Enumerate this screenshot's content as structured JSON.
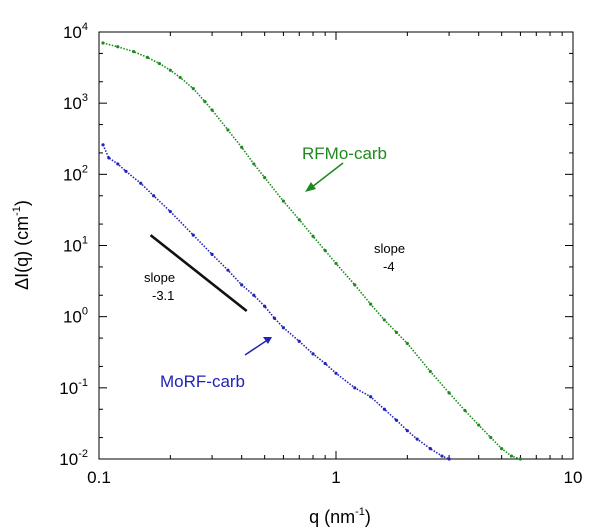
{
  "chart_data": {
    "type": "scatter",
    "title": "",
    "xlabel": "q  (nm",
    "xlabel_sup": "-1",
    "xlabel_close": ")",
    "ylabel": "ΔI(q)  (cm",
    "ylabel_sup": "-1",
    "ylabel_close": ")",
    "x_scale": "log",
    "y_scale": "log",
    "xlim": [
      0.1,
      10
    ],
    "ylim": [
      0.01,
      10000
    ],
    "grid": false,
    "x_ticks": [
      {
        "value": 0.1,
        "label": "0.1"
      },
      {
        "value": 1,
        "label": "1"
      },
      {
        "value": 10,
        "label": "10"
      }
    ],
    "y_ticks": [
      {
        "value": 0.01,
        "base": "10",
        "exp": "-2"
      },
      {
        "value": 0.1,
        "base": "10",
        "exp": "-1"
      },
      {
        "value": 1,
        "base": "10",
        "exp": "0"
      },
      {
        "value": 10,
        "base": "10",
        "exp": "1"
      },
      {
        "value": 100,
        "base": "10",
        "exp": "2"
      },
      {
        "value": 1000,
        "base": "10",
        "exp": "3"
      },
      {
        "value": 10000,
        "base": "10",
        "exp": "4"
      }
    ],
    "series": [
      {
        "name": "RFMo-carb",
        "color": "#1e8a1e",
        "points": [
          [
            0.104,
            7000
          ],
          [
            0.12,
            6200
          ],
          [
            0.14,
            5300
          ],
          [
            0.16,
            4400
          ],
          [
            0.18,
            3600
          ],
          [
            0.2,
            2900
          ],
          [
            0.22,
            2300
          ],
          [
            0.25,
            1600
          ],
          [
            0.28,
            1050
          ],
          [
            0.3,
            800
          ],
          [
            0.35,
            420
          ],
          [
            0.4,
            240
          ],
          [
            0.45,
            140
          ],
          [
            0.5,
            90
          ],
          [
            0.6,
            42
          ],
          [
            0.7,
            23
          ],
          [
            0.8,
            13.5
          ],
          [
            0.9,
            8.5
          ],
          [
            1.0,
            5.6
          ],
          [
            1.2,
            2.8
          ],
          [
            1.4,
            1.5
          ],
          [
            1.6,
            0.9
          ],
          [
            1.8,
            0.6
          ],
          [
            2.0,
            0.42
          ],
          [
            2.5,
            0.17
          ],
          [
            3.0,
            0.085
          ],
          [
            3.5,
            0.048
          ],
          [
            4.0,
            0.03
          ],
          [
            4.5,
            0.02
          ],
          [
            5.0,
            0.014
          ],
          [
            5.5,
            0.011
          ],
          [
            6.0,
            0.01
          ]
        ]
      },
      {
        "name": "MoRF-carb",
        "color": "#2222bb",
        "points": [
          [
            0.104,
            260
          ],
          [
            0.11,
            170
          ],
          [
            0.12,
            140
          ],
          [
            0.13,
            110
          ],
          [
            0.15,
            75
          ],
          [
            0.17,
            50
          ],
          [
            0.2,
            30
          ],
          [
            0.25,
            14
          ],
          [
            0.3,
            7.5
          ],
          [
            0.35,
            4.5
          ],
          [
            0.4,
            2.8
          ],
          [
            0.45,
            2.0
          ],
          [
            0.5,
            1.4
          ],
          [
            0.55,
            0.95
          ],
          [
            0.6,
            0.7
          ],
          [
            0.7,
            0.45
          ],
          [
            0.8,
            0.3
          ],
          [
            0.9,
            0.22
          ],
          [
            1.0,
            0.16
          ],
          [
            1.2,
            0.1
          ],
          [
            1.4,
            0.075
          ],
          [
            1.6,
            0.05
          ],
          [
            1.8,
            0.035
          ],
          [
            2.0,
            0.025
          ],
          [
            2.2,
            0.019
          ],
          [
            2.5,
            0.014
          ],
          [
            2.8,
            0.011
          ],
          [
            3.0,
            0.01
          ]
        ]
      }
    ],
    "guide_line": {
      "x": [
        0.165,
        0.42
      ],
      "y": [
        14,
        1.2
      ],
      "color": "#111111"
    },
    "annotations": {
      "rfmo_label": "RFMo-carb",
      "morf_label": "MoRF-carb",
      "slope4_line1": "slope",
      "slope4_line2": "-4",
      "slope31_line1": "slope",
      "slope31_line2": "-3.1"
    }
  }
}
